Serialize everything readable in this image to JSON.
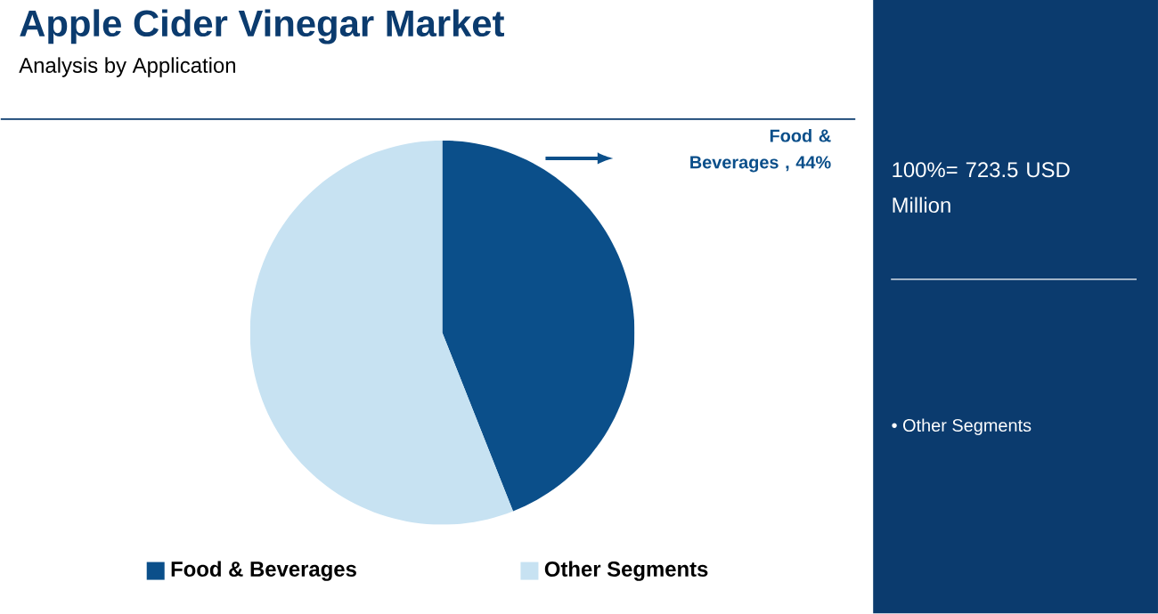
{
  "chart_data": {
    "type": "pie",
    "title": "Apple Cider Vinegar Market",
    "subtitle": "Analysis by Application",
    "categories": [
      "Food & Beverages",
      "Other Segments"
    ],
    "values": [
      44,
      56
    ],
    "colors": [
      "#0b4f8a",
      "#c7e2f2"
    ],
    "legend": "bottom",
    "annotations": [
      "Food & Beverages , 44%",
      "100%= 723.5 USD Million",
      "• Other Segments"
    ]
  }
}
